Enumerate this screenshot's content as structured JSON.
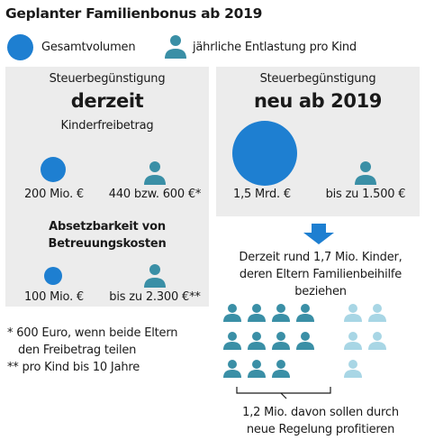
{
  "title": "Geplanter Familienbonus ab 2019",
  "legend": {
    "total_label": "Gesamtvolumen",
    "per_child_label": "jährliche Entlastung pro Kind"
  },
  "current": {
    "heading": "Steuerbegünstigung",
    "big": "derzeit",
    "subheading": "Kinderfreibetrag",
    "total_value": "200 Mio. €",
    "per_child_value": "440 bzw. 600 €*",
    "care_heading_1": "Absetzbarkeit von",
    "care_heading_2": "Betreuungskosten",
    "care_total_value": "100 Mio. €",
    "care_per_child_value": "bis zu 2.300 €**"
  },
  "new": {
    "heading": "Steuerbegünstigung",
    "big": "neu ab 2019",
    "total_value": "1,5 Mrd. €",
    "per_child_value": "bis zu 1.500 €"
  },
  "footnotes": {
    "note1_line1": "* 600 Euro, wenn beide Eltern",
    "note1_line2": "den Freibetrag teilen",
    "note2": "** pro Kind bis 10 Jahre"
  },
  "children": {
    "line1": "Derzeit rund 1,7 Mio. Kinder,",
    "line2": "deren Eltern Familienbeihilfe",
    "line3": "beziehen",
    "benefit_line1": "1,2 Mio. davon sollen durch",
    "benefit_line2": "neue Regelung profitieren"
  },
  "colors": {
    "blue": "#1e7fd1",
    "teal": "#3a8fa6",
    "light_teal": "#a8d6e5",
    "panel": "#ececec"
  }
}
